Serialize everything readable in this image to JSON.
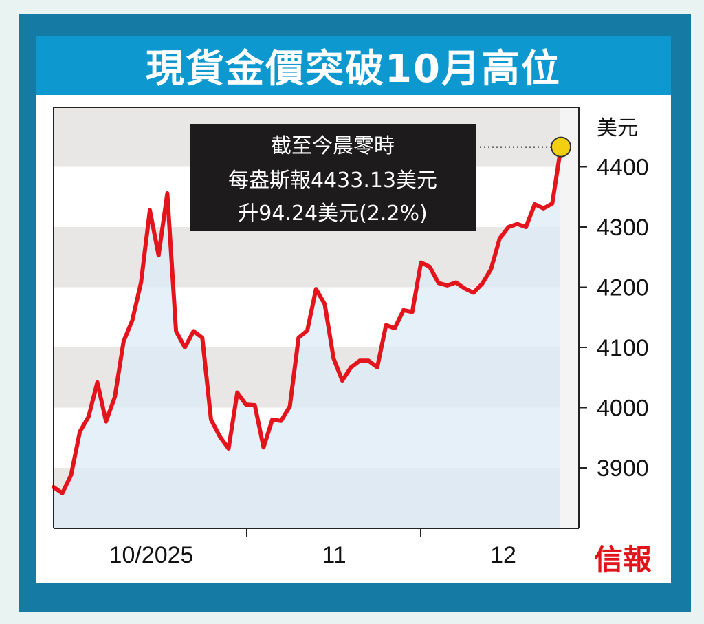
{
  "title": "現貨金價突破10月高位",
  "chart_data": {
    "type": "line",
    "unit": "美元",
    "y_ticks": [
      "4400",
      "4300",
      "4200",
      "4100",
      "4000",
      "3900"
    ],
    "y_tick_values": [
      4400,
      4300,
      4200,
      4100,
      4000,
      3900
    ],
    "ylim": [
      3800,
      4490
    ],
    "x_labels": [
      "10/2025",
      "11",
      "12"
    ],
    "values": [
      3868,
      3858,
      3888,
      3960,
      3985,
      4042,
      3977,
      4018,
      4110,
      4145,
      4208,
      4328,
      4253,
      4356,
      4127,
      4100,
      4127,
      4116,
      3980,
      3952,
      3932,
      4025,
      4005,
      4004,
      3934,
      3980,
      3978,
      4002,
      4116,
      4128,
      4197,
      4172,
      4082,
      4045,
      4067,
      4078,
      4078,
      4067,
      4137,
      4132,
      4162,
      4159,
      4241,
      4234,
      4207,
      4203,
      4208,
      4198,
      4191,
      4206,
      4230,
      4281,
      4300,
      4305,
      4300,
      4338,
      4331,
      4339,
      4433
    ],
    "series_color": "#e3141b",
    "fill_color": "#dcebf6",
    "band_color": "#e9e6e6",
    "marker_color": "#f2d011",
    "annotation": [
      "截至今晨零時",
      "每盎斯報4433.13美元",
      "升94.24美元(2.2%)"
    ]
  },
  "logo": "信報"
}
